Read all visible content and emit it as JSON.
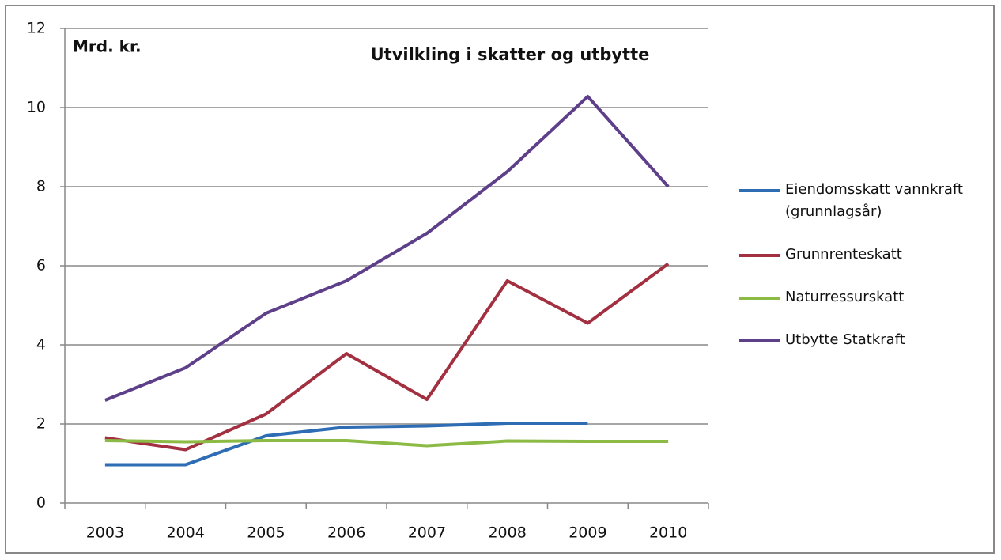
{
  "chart_data": {
    "type": "line",
    "title": "Utvilkling i skatter og utbytte",
    "y_label": "Mrd. kr.",
    "categories": [
      "2003",
      "2004",
      "2005",
      "2006",
      "2007",
      "2008",
      "2009",
      "2010"
    ],
    "series": [
      {
        "name": "Eiendomsskatt vannkraft (grunnlagsår)",
        "color": "#2e6db3",
        "values": [
          0.97,
          0.97,
          1.7,
          1.92,
          1.95,
          2.02,
          2.02,
          null
        ]
      },
      {
        "name": "Grunnrenteskatt",
        "color": "#a33040",
        "values": [
          1.65,
          1.35,
          2.25,
          3.78,
          2.62,
          5.62,
          4.55,
          6.05
        ]
      },
      {
        "name": "Naturressurskatt",
        "color": "#8cbb45",
        "values": [
          1.58,
          1.55,
          1.58,
          1.58,
          1.45,
          1.57,
          1.56,
          1.56
        ]
      },
      {
        "name": "Utbytte Statkraft",
        "color": "#5e3f8a",
        "values": [
          2.6,
          3.42,
          4.8,
          5.62,
          6.82,
          8.38,
          10.28,
          8.0
        ]
      }
    ],
    "ylim": [
      0,
      12
    ],
    "yticks": [
      0,
      2,
      4,
      6,
      8,
      10,
      12
    ],
    "grid": true,
    "legend": "right"
  }
}
